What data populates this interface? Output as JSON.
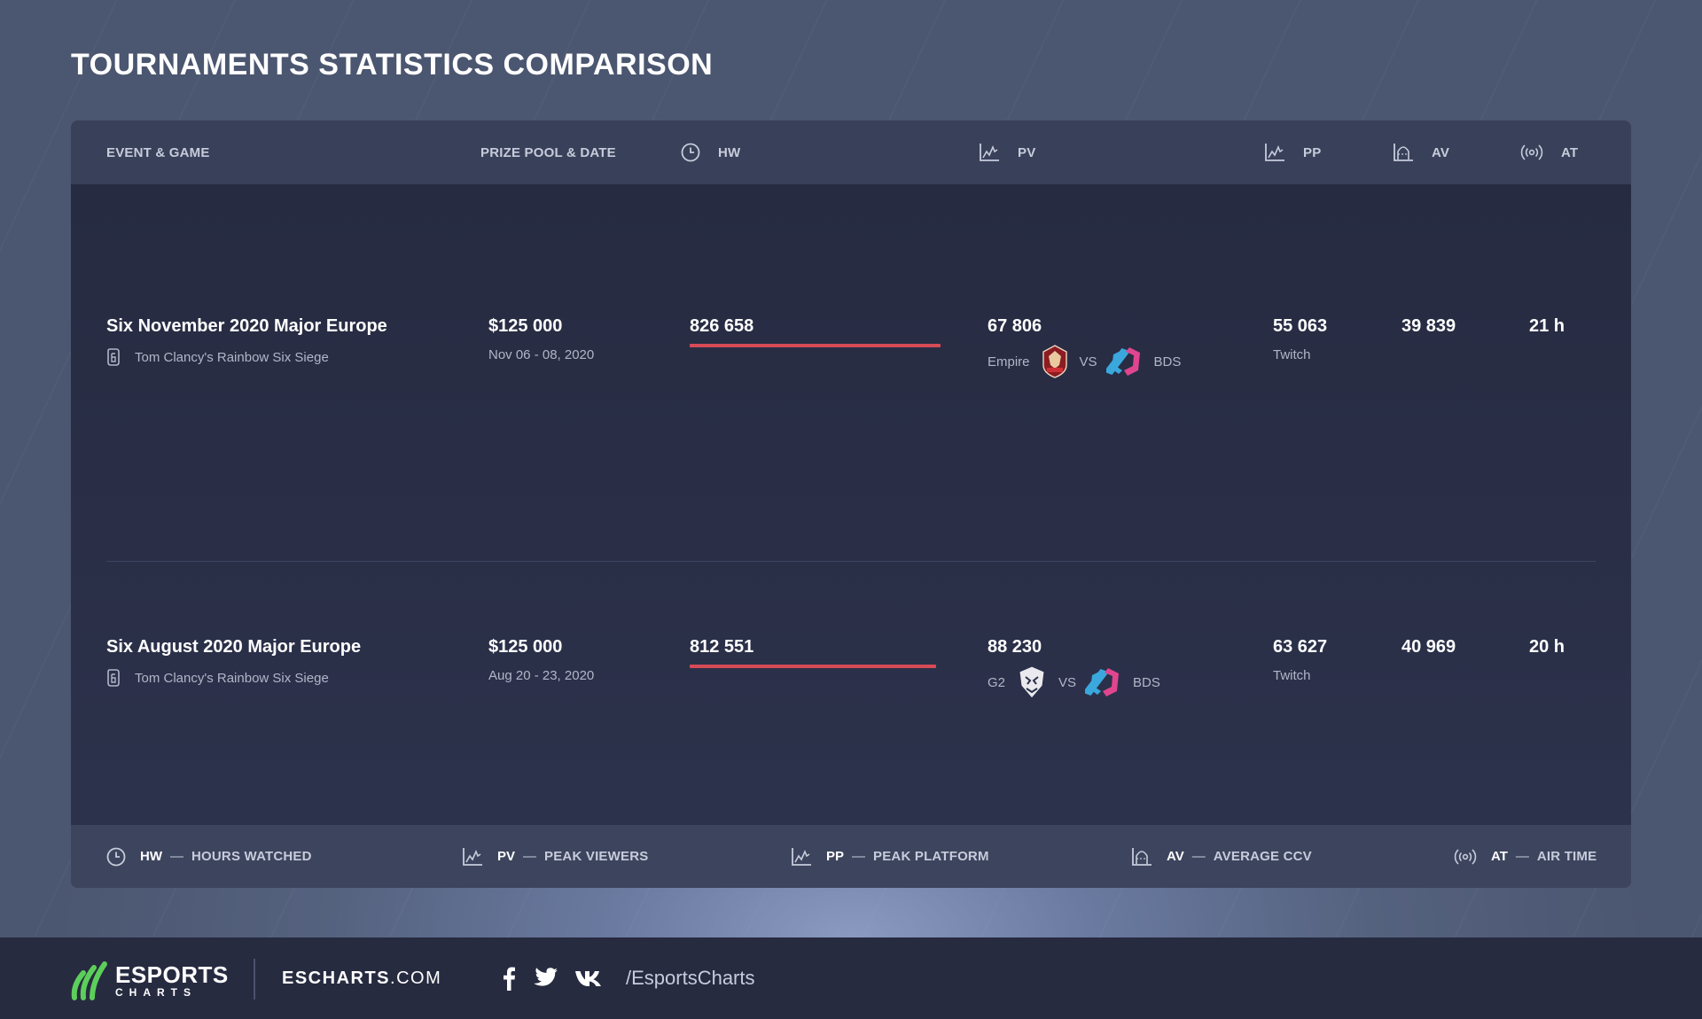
{
  "page": {
    "title": "TOURNAMENTS STATISTICS COMPARISON"
  },
  "header": {
    "event_game": "EVENT & GAME",
    "prize_date": "PRIZE POOL & DATE",
    "hw": "HW",
    "pv": "PV",
    "pp": "PP",
    "av": "AV",
    "at": "AT"
  },
  "rows": [
    {
      "event": "Six November 2020 Major Europe",
      "game": "Tom Clancy's Rainbow Six Siege",
      "prize": "$125 000",
      "date": "Nov 06 - 08, 2020",
      "hw": "826 658",
      "hw_bar_fraction": 1.0,
      "pv": "67 806",
      "team1": "Empire",
      "vs": "VS",
      "team2": "BDS",
      "pp": "55 063",
      "platform": "Twitch",
      "av": "39 839",
      "at": "21 h"
    },
    {
      "event": "Six August 2020 Major Europe",
      "game": "Tom Clancy's Rainbow Six Siege",
      "prize": "$125 000",
      "date": "Aug 20 - 23, 2020",
      "hw": "812 551",
      "hw_bar_fraction": 0.983,
      "pv": "88 230",
      "team1": "G2",
      "vs": "VS",
      "team2": "BDS",
      "pp": "63 627",
      "platform": "Twitch",
      "av": "40 969",
      "at": "20 h"
    }
  ],
  "legend": [
    {
      "abbr": "HW",
      "dash": "—",
      "full": "HOURS WATCHED",
      "icon": "clock-icon"
    },
    {
      "abbr": "PV",
      "dash": "—",
      "full": "PEAK VIEWERS",
      "icon": "peak-chart-icon"
    },
    {
      "abbr": "PP",
      "dash": "—",
      "full": "PEAK PLATFORM",
      "icon": "peak-chart-icon"
    },
    {
      "abbr": "AV",
      "dash": "—",
      "full": "AVERAGE CCV",
      "icon": "average-chart-icon"
    },
    {
      "abbr": "AT",
      "dash": "—",
      "full": "AIR TIME",
      "icon": "broadcast-icon"
    }
  ],
  "footer": {
    "brand_main": "ESPORTS",
    "brand_sub": "CHARTS",
    "site_bold": "ESCHARTS",
    "site_rest": ".COM",
    "handle": "/EsportsCharts"
  },
  "colors": {
    "accent_bar": "#d64b56",
    "brand_green": "#5ccf5a",
    "bds_pink": "#e0458f",
    "bds_blue": "#3aa8dc"
  }
}
